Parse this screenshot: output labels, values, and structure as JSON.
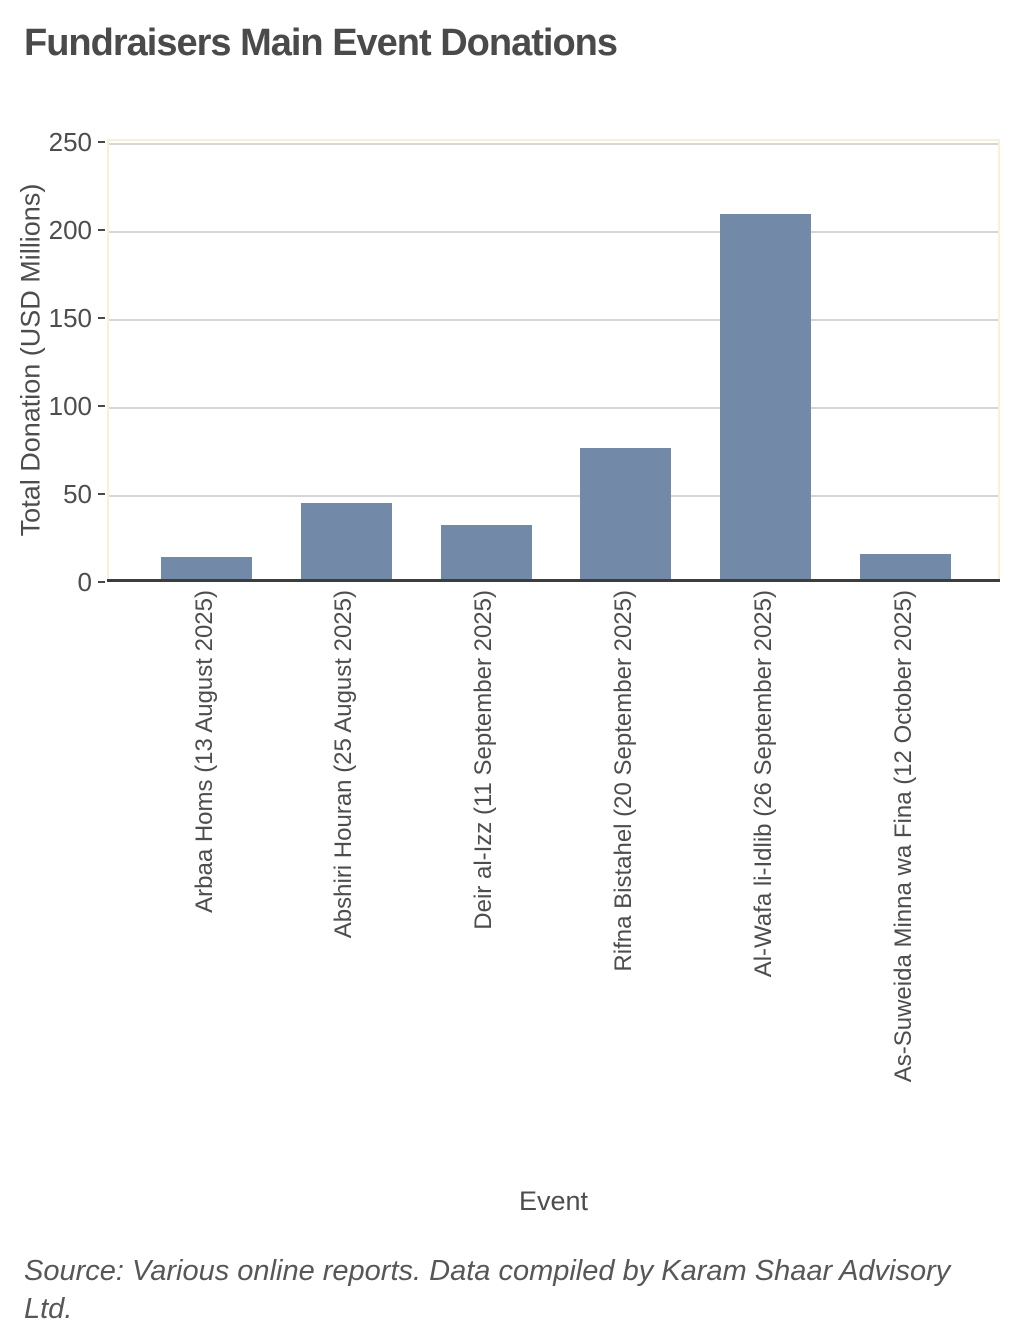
{
  "page": {
    "title": "Fundraisers Main Event Donations",
    "source": "Source: Various online reports. Data compiled by Karam Shaar Advisory Ltd."
  },
  "chart_data": {
    "type": "bar",
    "title": "Fundraisers Main Event Donations",
    "categories": [
      "Arbaa Homs (13 August 2025)",
      "Abshiri Houran (25 August 2025)",
      "Deir al-Izz (11 September 2025)",
      "Rifna Bistahel (20 September 2025)",
      "Al-Wafa li-Idlib (26 September 2025)",
      "As-Suweida Minna wa Fina (12 October 2025)"
    ],
    "values": [
      13,
      44,
      31,
      75,
      208,
      15
    ],
    "xlabel": "Event",
    "ylabel": "Total Donation (USD Millions)",
    "yticks": [
      0,
      50,
      100,
      150,
      200,
      250
    ],
    "ylim": [
      0,
      250
    ],
    "grid": true,
    "legend_position": "none",
    "colors": {
      "bar": "#7289a7",
      "gridline": "#d6d6d6",
      "axis_line": "#3d3d3d",
      "panel_border": "#f8f0d8",
      "text": "#4d4d4d"
    }
  }
}
